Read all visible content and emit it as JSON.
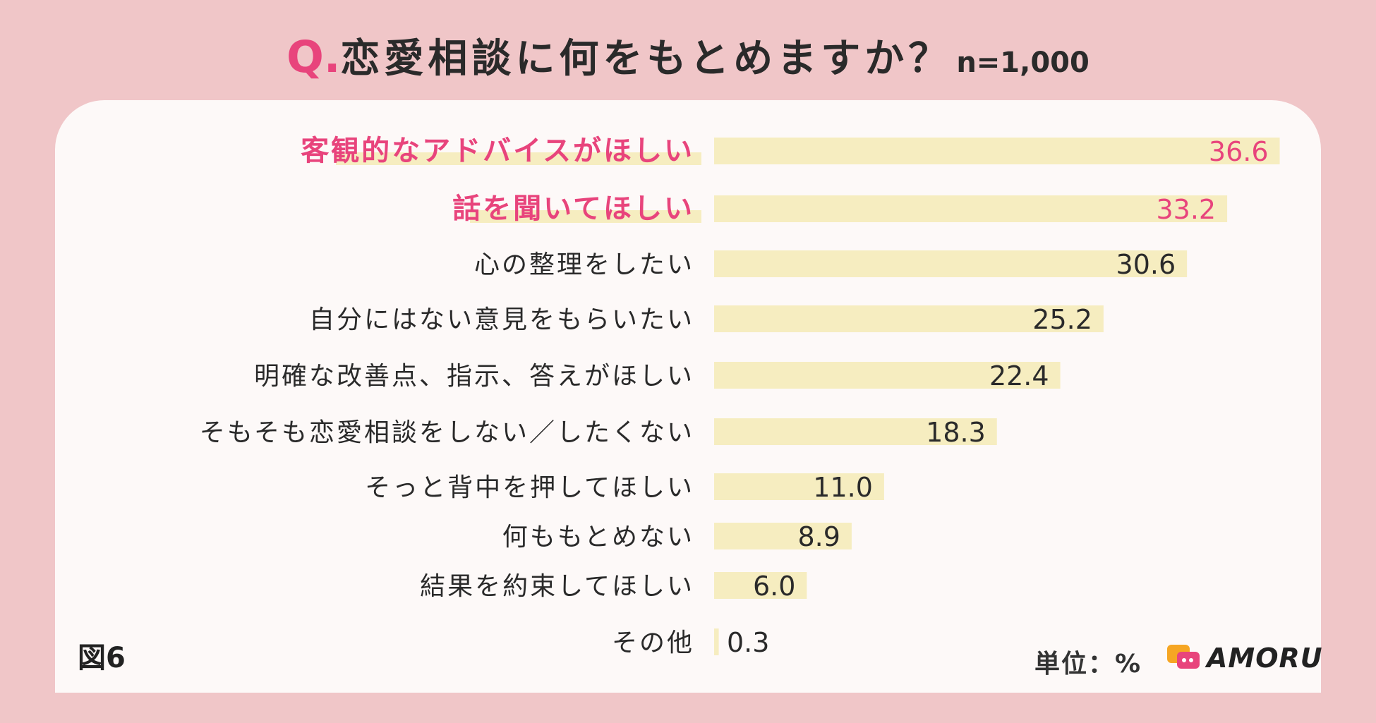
{
  "header": {
    "q_mark": "Q.",
    "question": "恋愛相談に何をもとめますか？",
    "sample": "n=1,000"
  },
  "footer": {
    "figure_label": "図6",
    "unit": "単位：%",
    "brand": "AMORU"
  },
  "colors": {
    "background": "#f0c6c8",
    "card": "#fdf9f8",
    "bar": "#f6edc0",
    "highlight_text": "#e8447c",
    "text": "#2a2a2a"
  },
  "chart_data": {
    "type": "bar",
    "orientation": "horizontal",
    "title": "恋愛相談に何をもとめますか？",
    "categories": [
      "客観的なアドバイスがほしい",
      "話を聞いてほしい",
      "心の整理をしたい",
      "自分にはない意見をもらいたい",
      "明確な改善点、指示、答えがほしい",
      "そもそも恋愛相談をしない／したくない",
      "そっと背中を押してほしい",
      "何ももとめない",
      "結果を約束してほしい",
      "その他"
    ],
    "values": [
      36.6,
      33.2,
      30.6,
      25.2,
      22.4,
      18.3,
      11.0,
      8.9,
      6.0,
      0.3
    ],
    "value_labels": [
      "36.6",
      "33.2",
      "30.6",
      "25.2",
      "22.4",
      "18.3",
      "11.0",
      "8.9",
      "6.0",
      "0.3"
    ],
    "highlighted": [
      0,
      1
    ],
    "unit": "%",
    "grid": false,
    "legend": "none"
  }
}
